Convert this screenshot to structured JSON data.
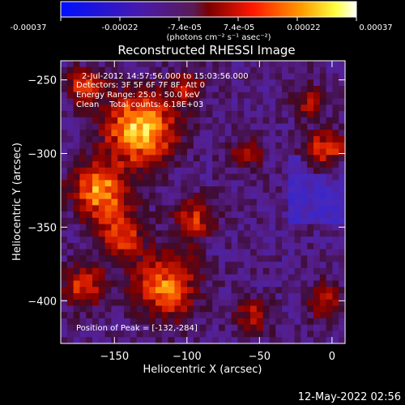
{
  "colorbar": {
    "ticks": [
      "-0.00037",
      "-0.00022",
      "-7.4e-05",
      "7.4e-05",
      "0.00022",
      "0.00037"
    ],
    "unit_text": "(photons cm⁻² s⁻¹ asec⁻²)"
  },
  "chart_data": {
    "type": "heatmap",
    "title": "Reconstructed RHESSI Image",
    "xlabel": "Heliocentric X (arcsec)",
    "ylabel": "Heliocentric Y (arcsec)",
    "x_ticks": [
      -150,
      -100,
      -50,
      0
    ],
    "y_ticks": [
      -250,
      -300,
      -350,
      -400
    ],
    "x_tick_labels": [
      "−150",
      "−100",
      "−50",
      "0"
    ],
    "y_tick_labels": [
      "−250",
      "−300",
      "−350",
      "−400"
    ],
    "xlim": [
      -187,
      9
    ],
    "ylim": [
      -429,
      -237
    ],
    "colorbar_range": [
      -0.00037,
      0.00037
    ],
    "colormap": "blue-purple-red-yellow-white",
    "peak": [
      -132,
      -284
    ],
    "annotations": [
      "2-Jul-2012 14:57:56.000 to 15:03:56.000",
      "Detectors: 3F 5F 6F 7F 8F, Att 0",
      "Energy Range: 25.0 - 50.0 keV",
      "Clean    Total counts: 6.18E+03",
      "Position of Peak = [-132,-284]"
    ]
  },
  "footer": {
    "timestamp": "12-May-2022 02:56"
  }
}
